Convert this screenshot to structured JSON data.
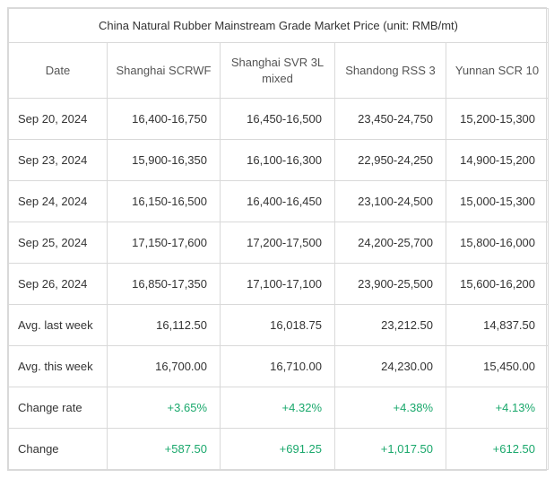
{
  "title": "China Natural Rubber Mainstream Grade Market Price (unit: RMB/mt)",
  "columns": {
    "c0": "Date",
    "c1": "Shanghai SCRWF",
    "c2": "Shanghai SVR 3L mixed",
    "c3": "Shandong RSS 3",
    "c4": "Yunnan SCR 10"
  },
  "rows": [
    {
      "label": "Sep 20, 2024",
      "c1": "16,400-16,750",
      "c2": "16,450-16,500",
      "c3": "23,450-24,750",
      "c4": "15,200-15,300",
      "hl": false
    },
    {
      "label": "Sep 23, 2024",
      "c1": "15,900-16,350",
      "c2": "16,100-16,300",
      "c3": "22,950-24,250",
      "c4": "14,900-15,200",
      "hl": false
    },
    {
      "label": "Sep 24, 2024",
      "c1": "16,150-16,500",
      "c2": "16,400-16,450",
      "c3": "23,100-24,500",
      "c4": "15,000-15,300",
      "hl": false
    },
    {
      "label": "Sep 25, 2024",
      "c1": "17,150-17,600",
      "c2": "17,200-17,500",
      "c3": "24,200-25,700",
      "c4": "15,800-16,000",
      "hl": false
    },
    {
      "label": "Sep 26, 2024",
      "c1": "16,850-17,350",
      "c2": "17,100-17,100",
      "c3": "23,900-25,500",
      "c4": "15,600-16,200",
      "hl": false
    },
    {
      "label": "Avg. last week",
      "c1": "16,112.50",
      "c2": "16,018.75",
      "c3": "23,212.50",
      "c4": "14,837.50",
      "hl": false
    },
    {
      "label": "Avg. this week",
      "c1": "16,700.00",
      "c2": "16,710.00",
      "c3": "24,230.00",
      "c4": "15,450.00",
      "hl": false
    },
    {
      "label": "Change rate",
      "c1": "+3.65%",
      "c2": "+4.32%",
      "c3": "+4.38%",
      "c4": "+4.13%",
      "hl": true
    },
    {
      "label": "Change",
      "c1": "+587.50",
      "c2": "+691.25",
      "c3": "+1,017.50",
      "c4": "+612.50",
      "hl": true
    }
  ],
  "colors": {
    "border": "#d9d9d9",
    "text": "#333333",
    "positive": "#1aa86c",
    "background": "#ffffff"
  },
  "fontsize": {
    "title": 13,
    "header": 13,
    "body": 13
  }
}
